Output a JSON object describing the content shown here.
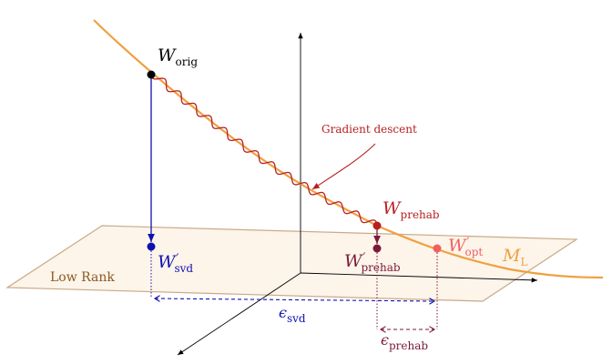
{
  "labels": {
    "w_orig": {
      "main": "W",
      "sub": "orig"
    },
    "w_prehab": {
      "main": "W",
      "sub": "prehab"
    },
    "w_svd": {
      "main": "W",
      "prime": "′",
      "sub": "svd"
    },
    "w_prehab_prime": {
      "main": "W",
      "prime": "′",
      "sub": "prehab"
    },
    "w_opt": {
      "main": "W",
      "prime": "′",
      "sub": "opt"
    },
    "manifold": {
      "main": "M",
      "sub": "L"
    },
    "eps_svd": {
      "main": "ϵ",
      "sub": "svd"
    },
    "eps_prehab": {
      "main": "ϵ",
      "sub": "prehab"
    },
    "gradient_descent": "Gradient descent",
    "low_rank": "Low Rank"
  },
  "colors": {
    "manifold": "#f0a040",
    "plane_fill": "#fdf4ea",
    "plane_stroke": "#c8aa88",
    "svd": "#1010b0",
    "prehab": "#b82020",
    "prehab_prime": "#7a1a3a",
    "opt": "#f06060",
    "low_rank_text": "#8a5a20"
  }
}
